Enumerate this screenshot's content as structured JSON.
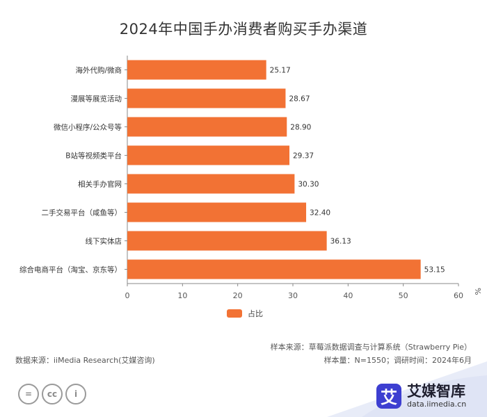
{
  "title": "2024年中国手办消费者购买手办渠道",
  "chart_data": {
    "type": "bar",
    "orientation": "horizontal",
    "categories": [
      "海外代购/微商",
      "漫展等展览活动",
      "微信小程序/公众号等",
      "B站等视频类平台",
      "相关手办官网",
      "二手交易平台（咸鱼等）",
      "线下实体店",
      "综合电商平台（淘宝、京东等）"
    ],
    "series": [
      {
        "name": "占比",
        "values": [
          25.17,
          28.67,
          28.9,
          29.37,
          30.3,
          32.4,
          36.13,
          53.15
        ],
        "labels": [
          "25.17",
          "28.67",
          "28.90",
          "29.37",
          "30.30",
          "32.40",
          "36.13",
          "53.15"
        ]
      }
    ],
    "xlim": [
      0,
      60
    ],
    "xticks": [
      "0",
      "10",
      "20",
      "30",
      "40",
      "50",
      "60"
    ],
    "unit": "%",
    "legend_position": "bottom",
    "bar_color": "#f27234",
    "grid": false
  },
  "source": {
    "sample_source": "样本来源：草莓派数据调查与计算系统（Strawberry Pie）",
    "data_source": "数据来源：iiMedia Research(艾媒咨询)",
    "sample_size": "样本量：N=1550；调研时间：2024年6月"
  },
  "brand": {
    "logo_char": "艾",
    "name": "艾媒智库",
    "url": "data.iimedia.cn"
  },
  "cc": {
    "icon1": "=",
    "icon2": "cc",
    "icon3": "i"
  },
  "colors": {
    "bar": "#f27234",
    "brand": "#3d3fd1"
  }
}
